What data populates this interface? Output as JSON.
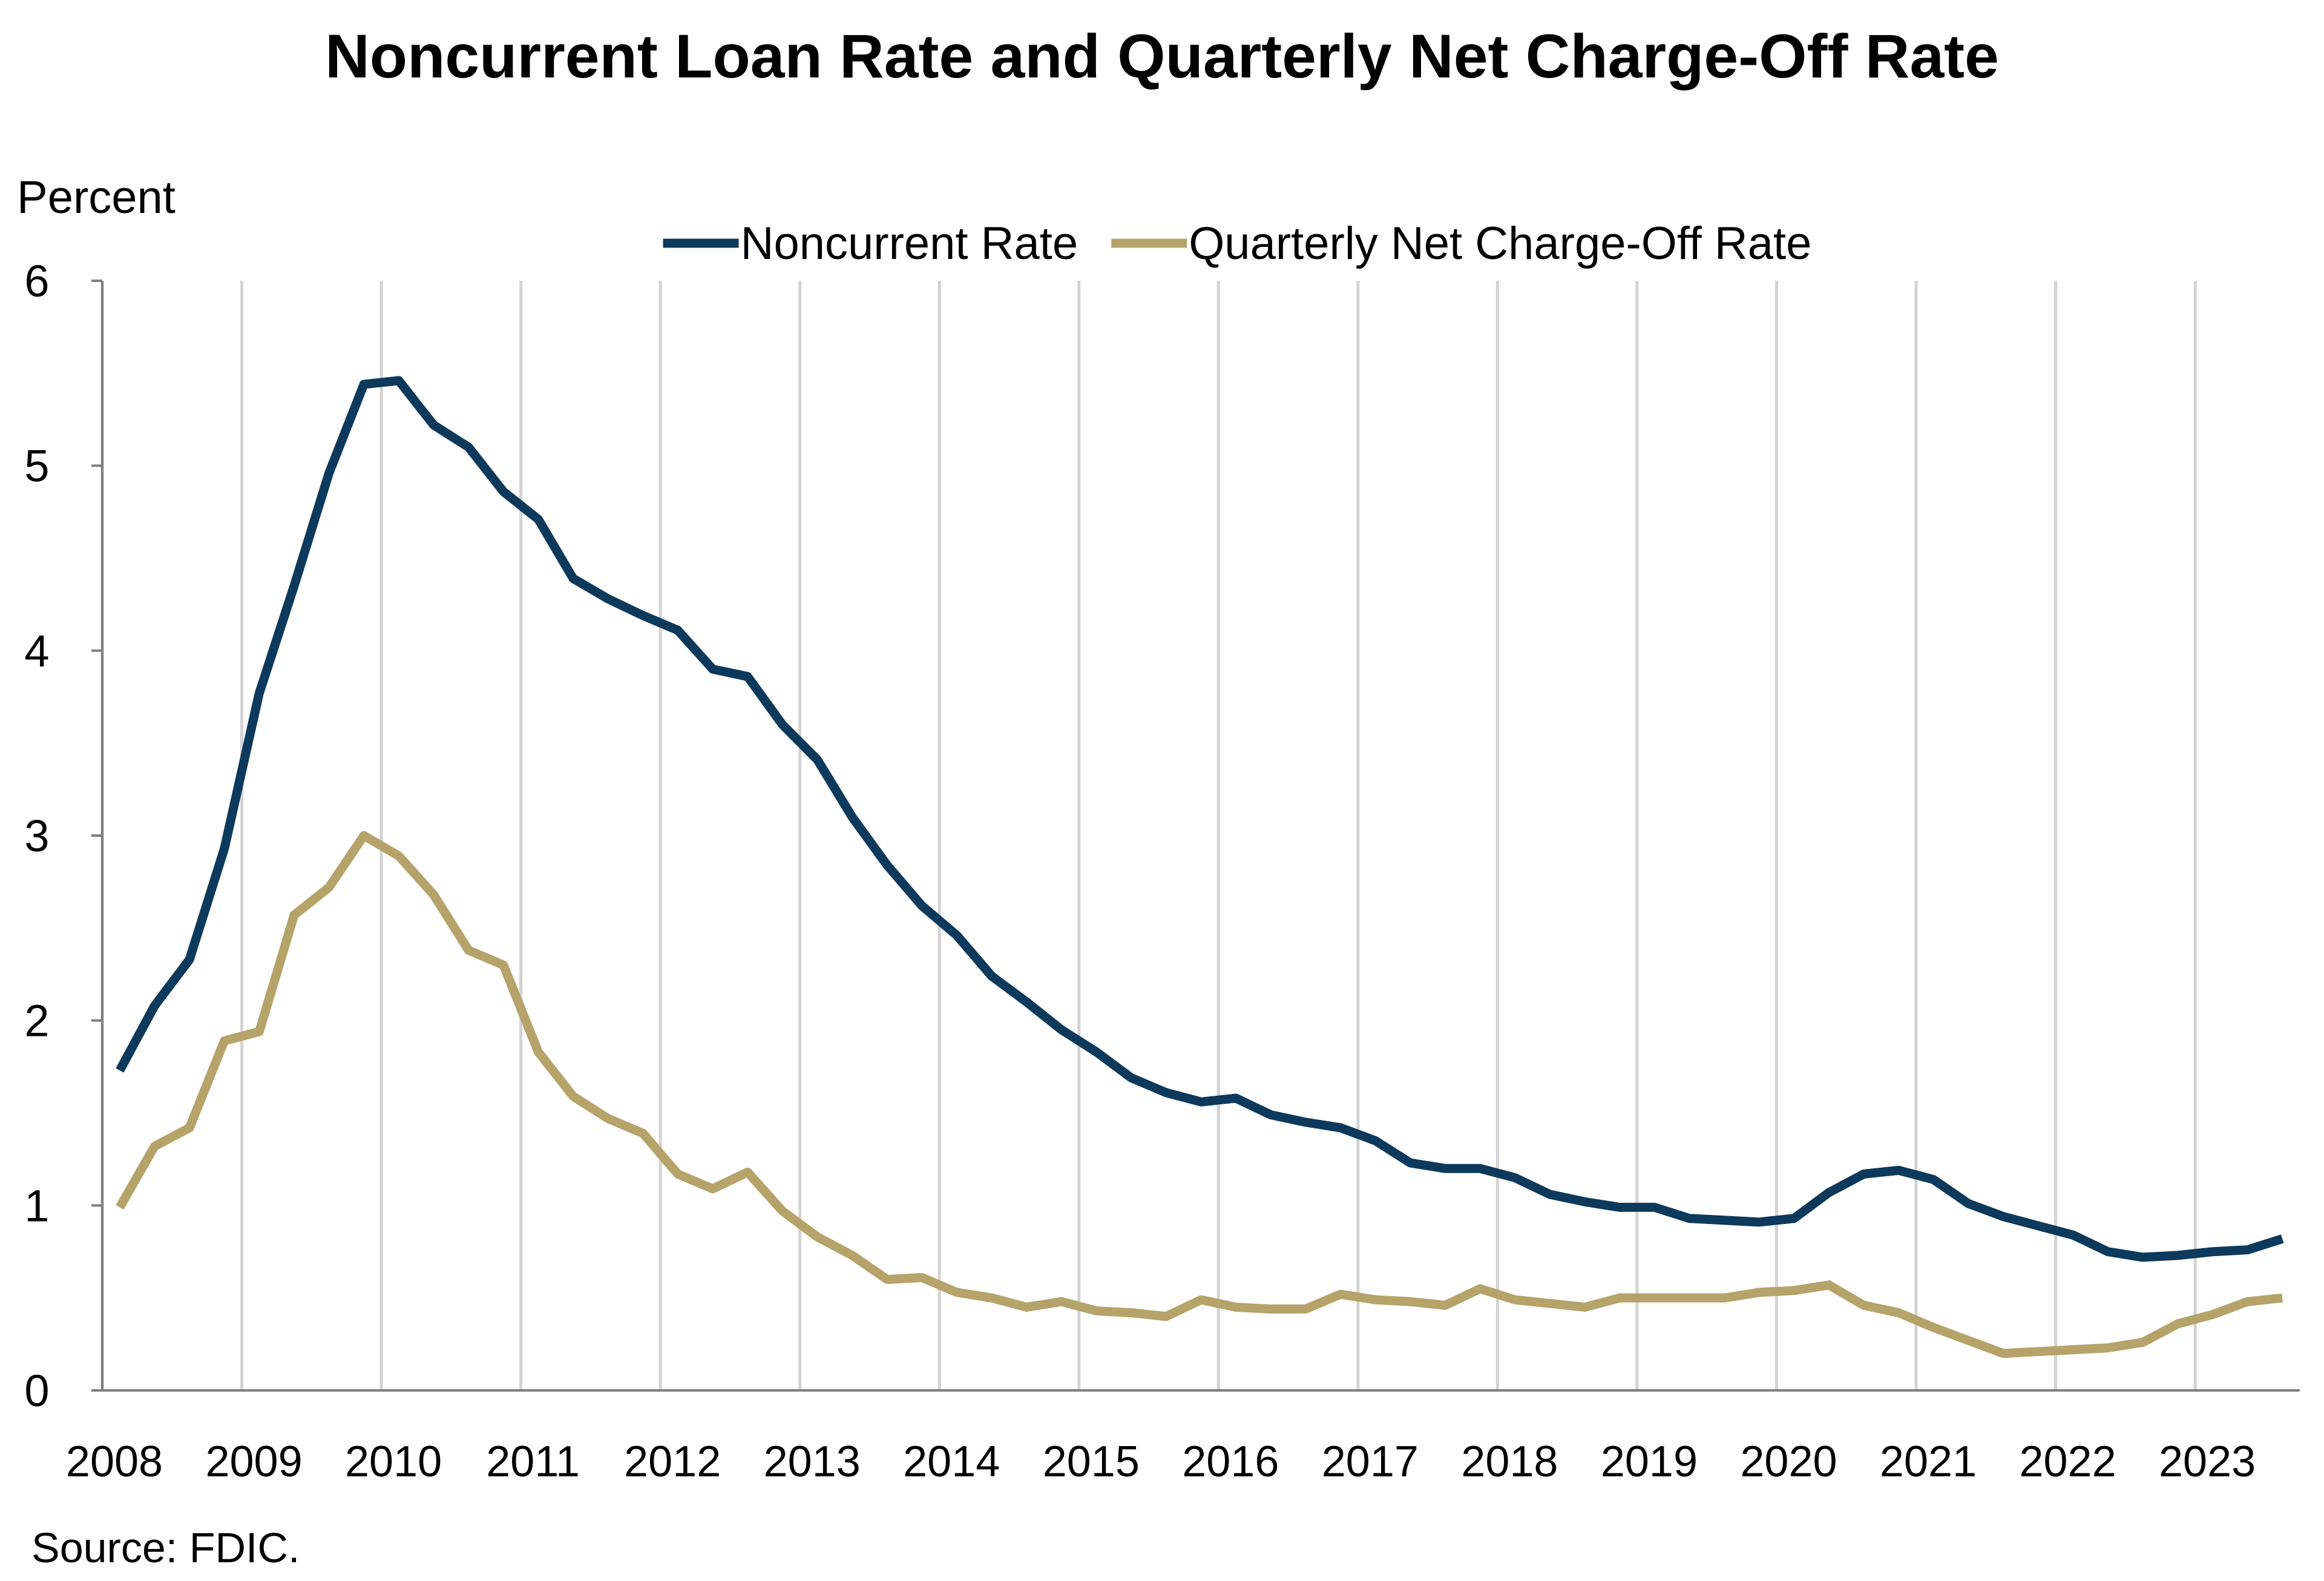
{
  "chart_data": {
    "type": "line",
    "title": "Noncurrent Loan Rate and Quarterly Net Charge-Off Rate",
    "y_label": "Percent",
    "source": "Source: FDIC.",
    "x": [
      2008.125,
      2008.375,
      2008.625,
      2008.875,
      2009.125,
      2009.375,
      2009.625,
      2009.875,
      2010.125,
      2010.375,
      2010.625,
      2010.875,
      2011.125,
      2011.375,
      2011.625,
      2011.875,
      2012.125,
      2012.375,
      2012.625,
      2012.875,
      2013.125,
      2013.375,
      2013.625,
      2013.875,
      2014.125,
      2014.375,
      2014.625,
      2014.875,
      2015.125,
      2015.375,
      2015.625,
      2015.875,
      2016.125,
      2016.375,
      2016.625,
      2016.875,
      2017.125,
      2017.375,
      2017.625,
      2017.875,
      2018.125,
      2018.375,
      2018.625,
      2018.875,
      2019.125,
      2019.375,
      2019.625,
      2019.875,
      2020.125,
      2020.375,
      2020.625,
      2020.875,
      2021.125,
      2021.375,
      2021.625,
      2021.875,
      2022.125,
      2022.375,
      2022.625,
      2022.875,
      2023.125,
      2023.375,
      2023.625
    ],
    "series": [
      {
        "name": "Noncurrent Rate",
        "color": "#0d3a5c",
        "values": [
          1.73,
          2.08,
          2.33,
          2.93,
          3.77,
          4.35,
          4.96,
          5.44,
          5.46,
          5.22,
          5.1,
          4.86,
          4.71,
          4.39,
          4.28,
          4.19,
          4.11,
          3.9,
          3.86,
          3.6,
          3.41,
          3.1,
          2.84,
          2.62,
          2.46,
          2.24,
          2.1,
          1.95,
          1.83,
          1.69,
          1.61,
          1.56,
          1.58,
          1.49,
          1.45,
          1.42,
          1.35,
          1.23,
          1.2,
          1.2,
          1.15,
          1.06,
          1.02,
          0.99,
          0.99,
          0.93,
          0.92,
          0.91,
          0.93,
          1.07,
          1.17,
          1.19,
          1.14,
          1.01,
          0.94,
          0.89,
          0.84,
          0.75,
          0.72,
          0.73,
          0.75,
          0.76,
          0.82
        ]
      },
      {
        "name": "Quarterly Net Charge-Off Rate",
        "color": "#b5a36a",
        "values": [
          0.99,
          1.32,
          1.42,
          1.89,
          1.94,
          2.57,
          2.72,
          3.0,
          2.89,
          2.68,
          2.38,
          2.3,
          1.83,
          1.59,
          1.47,
          1.39,
          1.17,
          1.09,
          1.18,
          0.97,
          0.83,
          0.73,
          0.6,
          0.61,
          0.53,
          0.5,
          0.45,
          0.48,
          0.43,
          0.42,
          0.4,
          0.49,
          0.45,
          0.44,
          0.44,
          0.52,
          0.49,
          0.48,
          0.46,
          0.55,
          0.49,
          0.47,
          0.45,
          0.5,
          0.5,
          0.5,
          0.5,
          0.53,
          0.54,
          0.57,
          0.46,
          0.42,
          0.34,
          0.27,
          0.2,
          0.21,
          0.22,
          0.23,
          0.26,
          0.36,
          0.41,
          0.48,
          0.5
        ]
      }
    ],
    "xlim": [
      2008,
      2023.75
    ],
    "xticks": [
      2008,
      2009,
      2010,
      2011,
      2012,
      2013,
      2014,
      2015,
      2016,
      2017,
      2018,
      2019,
      2020,
      2021,
      2022,
      2023
    ],
    "ylim": [
      0,
      6
    ],
    "yticks": [
      0,
      1,
      2,
      3,
      4,
      5,
      6
    ],
    "grid": true,
    "legend": "top"
  }
}
